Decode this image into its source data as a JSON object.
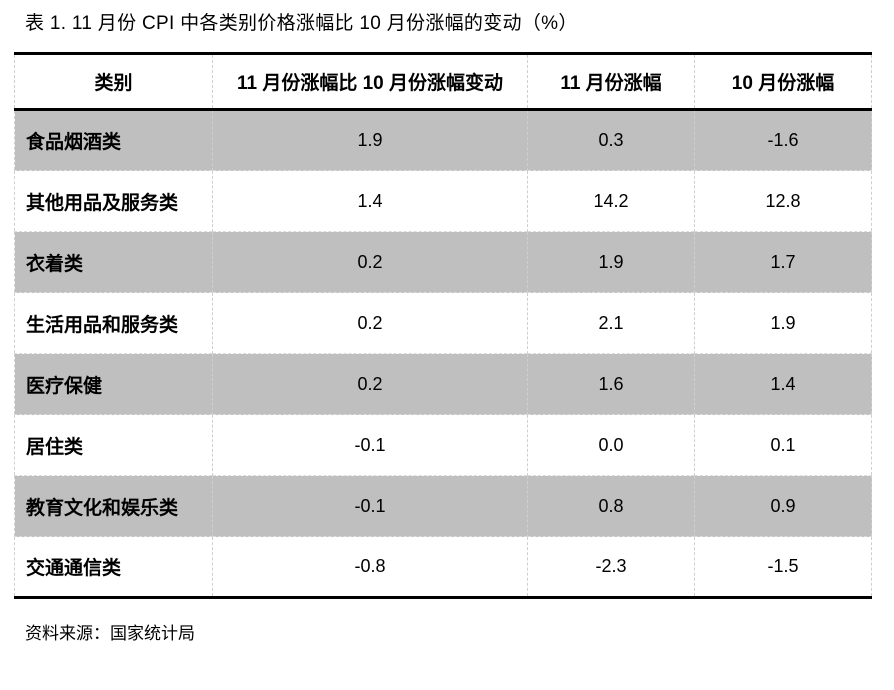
{
  "title": "表 1. 11 月份 CPI 中各类别价格涨幅比 10 月份涨幅的变动（%）",
  "source_note": "资料来源：国家统计局",
  "colors": {
    "row_shaded": "#bfbfbf",
    "row_plain": "#ffffff",
    "grid_dash": "#cfcfcf",
    "rule": "#000000",
    "text": "#000000",
    "background": "#ffffff"
  },
  "table": {
    "columns": [
      "类别",
      "11 月份涨幅比 10 月份涨幅变动",
      "11 月份涨幅",
      "10 月份涨幅"
    ],
    "rows": [
      {
        "category": "食品烟酒类",
        "values": [
          "1.9",
          "0.3",
          "-1.6"
        ],
        "shaded": true
      },
      {
        "category": "其他用品及服务类",
        "values": [
          "1.4",
          "14.2",
          "12.8"
        ],
        "shaded": false
      },
      {
        "category": "衣着类",
        "values": [
          "0.2",
          "1.9",
          "1.7"
        ],
        "shaded": true
      },
      {
        "category": "生活用品和服务类",
        "values": [
          "0.2",
          "2.1",
          "1.9"
        ],
        "shaded": false
      },
      {
        "category": "医疗保健",
        "values": [
          "0.2",
          "1.6",
          "1.4"
        ],
        "shaded": true
      },
      {
        "category": "居住类",
        "values": [
          "-0.1",
          "0.0",
          "0.1"
        ],
        "shaded": false
      },
      {
        "category": "教育文化和娱乐类",
        "values": [
          "-0.1",
          "0.8",
          "0.9"
        ],
        "shaded": true
      },
      {
        "category": "交通通信类",
        "values": [
          "-0.8",
          "-2.3",
          "-1.5"
        ],
        "shaded": false
      }
    ]
  },
  "chart_data": {
    "type": "table",
    "title": "表 1. 11 月份 CPI 中各类别价格涨幅比 10 月份涨幅的变动（%）",
    "columns": [
      "类别",
      "11 月份涨幅比 10 月份涨幅变动",
      "11 月份涨幅",
      "10 月份涨幅"
    ],
    "rows": [
      [
        "食品烟酒类",
        1.9,
        0.3,
        -1.6
      ],
      [
        "其他用品及服务类",
        1.4,
        14.2,
        12.8
      ],
      [
        "衣着类",
        0.2,
        1.9,
        1.7
      ],
      [
        "生活用品和服务类",
        0.2,
        2.1,
        1.9
      ],
      [
        "医疗保健",
        0.2,
        1.6,
        1.4
      ],
      [
        "居住类",
        -0.1,
        0.0,
        0.1
      ],
      [
        "教育文化和娱乐类",
        -0.1,
        0.8,
        0.9
      ],
      [
        "交通通信类",
        -0.8,
        -2.3,
        -1.5
      ]
    ],
    "source": "国家统计局"
  }
}
